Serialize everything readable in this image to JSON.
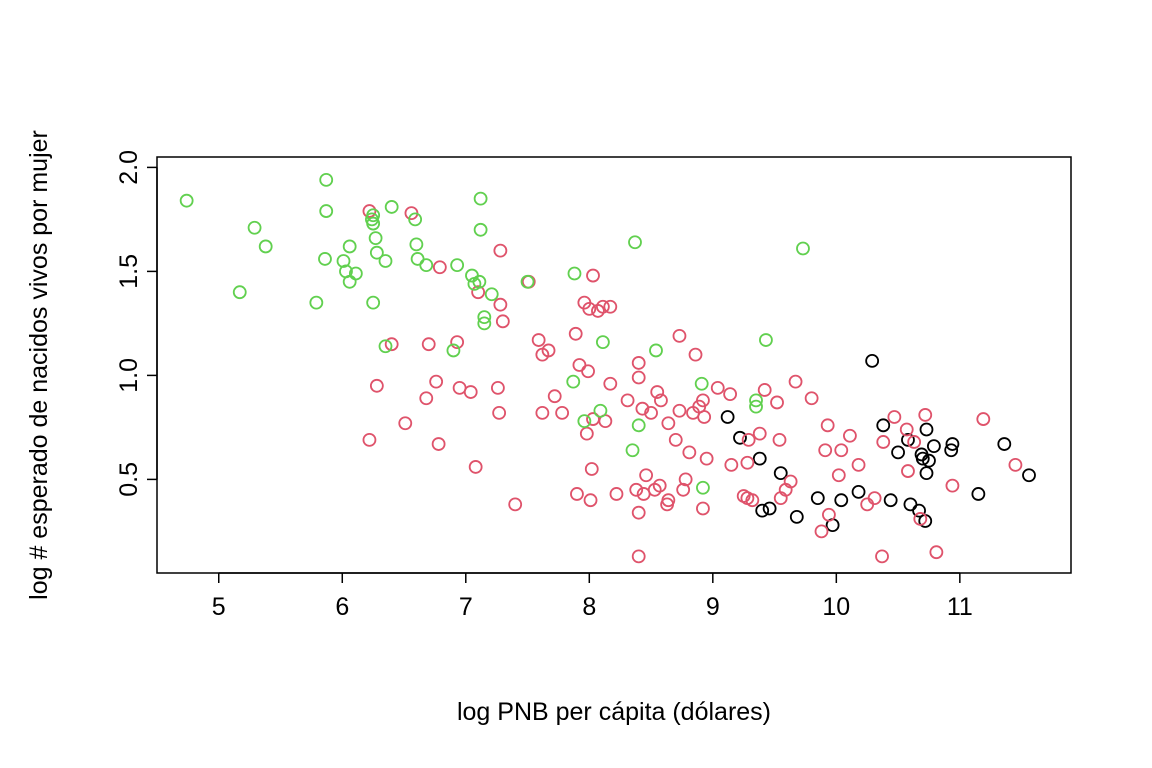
{
  "chart_data": {
    "type": "scatter",
    "title": "",
    "xlabel": "log PNB per cápita (dólares)",
    "ylabel": "log # esperado de nacidos vivos por mujer",
    "xlim": [
      4.5,
      11.9
    ],
    "ylim": [
      0.05,
      2.05
    ],
    "xticks": [
      "5",
      "6",
      "7",
      "8",
      "9",
      "10",
      "11"
    ],
    "yticks": [
      "0.5",
      "1.0",
      "1.5",
      "2.0"
    ],
    "grid": false,
    "legend": "none",
    "marker": "open circle",
    "series": [
      {
        "color": "#000000",
        "points": [
          [
            9.12,
            0.8
          ],
          [
            9.22,
            0.7
          ],
          [
            9.38,
            0.6
          ],
          [
            9.4,
            0.35
          ],
          [
            9.46,
            0.36
          ],
          [
            9.55,
            0.53
          ],
          [
            9.68,
            0.32
          ],
          [
            9.85,
            0.41
          ],
          [
            9.97,
            0.28
          ],
          [
            10.04,
            0.4
          ],
          [
            10.18,
            0.44
          ],
          [
            10.29,
            1.07
          ],
          [
            10.38,
            0.76
          ],
          [
            10.44,
            0.4
          ],
          [
            10.5,
            0.63
          ],
          [
            10.58,
            0.69
          ],
          [
            10.6,
            0.38
          ],
          [
            10.67,
            0.35
          ],
          [
            10.69,
            0.62
          ],
          [
            10.7,
            0.6
          ],
          [
            10.72,
            0.3
          ],
          [
            10.73,
            0.74
          ],
          [
            10.73,
            0.53
          ],
          [
            10.75,
            0.59
          ],
          [
            10.79,
            0.66
          ],
          [
            10.93,
            0.64
          ],
          [
            10.94,
            0.67
          ],
          [
            11.15,
            0.43
          ],
          [
            11.36,
            0.67
          ],
          [
            11.56,
            0.52
          ]
        ]
      },
      {
        "color": "#DF536B",
        "points": [
          [
            6.22,
            1.79
          ],
          [
            6.22,
            0.69
          ],
          [
            6.28,
            0.95
          ],
          [
            6.4,
            1.15
          ],
          [
            6.51,
            0.77
          ],
          [
            6.56,
            1.78
          ],
          [
            6.68,
            0.89
          ],
          [
            6.7,
            1.15
          ],
          [
            6.76,
            0.97
          ],
          [
            6.78,
            0.67
          ],
          [
            6.79,
            1.52
          ],
          [
            6.93,
            1.16
          ],
          [
            6.95,
            0.94
          ],
          [
            7.04,
            0.92
          ],
          [
            7.08,
            0.56
          ],
          [
            7.1,
            1.4
          ],
          [
            7.26,
            0.94
          ],
          [
            7.27,
            0.82
          ],
          [
            7.28,
            1.34
          ],
          [
            7.28,
            1.6
          ],
          [
            7.3,
            1.26
          ],
          [
            7.4,
            0.38
          ],
          [
            7.51,
            1.45
          ],
          [
            7.59,
            1.17
          ],
          [
            7.62,
            1.1
          ],
          [
            7.62,
            0.82
          ],
          [
            7.67,
            1.12
          ],
          [
            7.72,
            0.9
          ],
          [
            7.78,
            0.82
          ],
          [
            7.89,
            1.2
          ],
          [
            7.9,
            0.43
          ],
          [
            7.92,
            1.05
          ],
          [
            7.96,
            1.35
          ],
          [
            7.98,
            0.72
          ],
          [
            7.99,
            1.02
          ],
          [
            8.0,
            1.32
          ],
          [
            8.01,
            0.4
          ],
          [
            8.02,
            0.55
          ],
          [
            8.03,
            0.79
          ],
          [
            8.03,
            1.48
          ],
          [
            8.07,
            1.31
          ],
          [
            8.11,
            1.33
          ],
          [
            8.13,
            0.78
          ],
          [
            8.17,
            1.33
          ],
          [
            8.17,
            0.96
          ],
          [
            8.22,
            0.43
          ],
          [
            8.31,
            0.88
          ],
          [
            8.38,
            0.45
          ],
          [
            8.4,
            0.13
          ],
          [
            8.4,
            0.34
          ],
          [
            8.4,
            1.06
          ],
          [
            8.4,
            0.99
          ],
          [
            8.43,
            0.84
          ],
          [
            8.44,
            0.43
          ],
          [
            8.46,
            0.52
          ],
          [
            8.5,
            0.82
          ],
          [
            8.53,
            0.45
          ],
          [
            8.55,
            0.92
          ],
          [
            8.57,
            0.47
          ],
          [
            8.58,
            0.88
          ],
          [
            8.63,
            0.38
          ],
          [
            8.64,
            0.4
          ],
          [
            8.64,
            0.77
          ],
          [
            8.7,
            0.69
          ],
          [
            8.73,
            1.19
          ],
          [
            8.73,
            0.83
          ],
          [
            8.76,
            0.45
          ],
          [
            8.78,
            0.5
          ],
          [
            8.81,
            0.63
          ],
          [
            8.84,
            0.82
          ],
          [
            8.86,
            1.1
          ],
          [
            8.89,
            0.85
          ],
          [
            8.92,
            0.36
          ],
          [
            8.92,
            0.88
          ],
          [
            8.93,
            0.8
          ],
          [
            8.95,
            0.6
          ],
          [
            9.04,
            0.94
          ],
          [
            9.14,
            0.91
          ],
          [
            9.15,
            0.57
          ],
          [
            9.25,
            0.42
          ],
          [
            9.28,
            0.41
          ],
          [
            9.28,
            0.58
          ],
          [
            9.29,
            0.69
          ],
          [
            9.32,
            0.4
          ],
          [
            9.38,
            0.72
          ],
          [
            9.42,
            0.93
          ],
          [
            9.52,
            0.87
          ],
          [
            9.54,
            0.69
          ],
          [
            9.55,
            0.41
          ],
          [
            9.59,
            0.45
          ],
          [
            9.63,
            0.49
          ],
          [
            9.67,
            0.97
          ],
          [
            9.8,
            0.89
          ],
          [
            9.88,
            0.25
          ],
          [
            9.91,
            0.64
          ],
          [
            9.93,
            0.76
          ],
          [
            9.94,
            0.33
          ],
          [
            10.02,
            0.52
          ],
          [
            10.04,
            0.64
          ],
          [
            10.11,
            0.71
          ],
          [
            10.18,
            0.57
          ],
          [
            10.25,
            0.38
          ],
          [
            10.31,
            0.41
          ],
          [
            10.37,
            0.13
          ],
          [
            10.38,
            0.68
          ],
          [
            10.47,
            0.8
          ],
          [
            10.57,
            0.74
          ],
          [
            10.58,
            0.54
          ],
          [
            10.63,
            0.68
          ],
          [
            10.68,
            0.31
          ],
          [
            10.72,
            0.81
          ],
          [
            10.81,
            0.15
          ],
          [
            10.94,
            0.47
          ],
          [
            11.19,
            0.79
          ],
          [
            11.45,
            0.57
          ]
        ]
      },
      {
        "color": "#61D04F",
        "points": [
          [
            4.74,
            1.84
          ],
          [
            5.17,
            1.4
          ],
          [
            5.29,
            1.71
          ],
          [
            5.38,
            1.62
          ],
          [
            5.79,
            1.35
          ],
          [
            5.86,
            1.56
          ],
          [
            5.87,
            1.94
          ],
          [
            5.87,
            1.79
          ],
          [
            6.01,
            1.55
          ],
          [
            6.03,
            1.5
          ],
          [
            6.06,
            1.45
          ],
          [
            6.06,
            1.62
          ],
          [
            6.11,
            1.49
          ],
          [
            6.24,
            1.75
          ],
          [
            6.25,
            1.73
          ],
          [
            6.25,
            1.77
          ],
          [
            6.25,
            1.35
          ],
          [
            6.27,
            1.66
          ],
          [
            6.28,
            1.59
          ],
          [
            6.35,
            1.55
          ],
          [
            6.35,
            1.14
          ],
          [
            6.4,
            1.81
          ],
          [
            6.59,
            1.75
          ],
          [
            6.6,
            1.63
          ],
          [
            6.61,
            1.56
          ],
          [
            6.68,
            1.53
          ],
          [
            6.9,
            1.12
          ],
          [
            6.93,
            1.53
          ],
          [
            7.05,
            1.48
          ],
          [
            7.07,
            1.44
          ],
          [
            7.11,
            1.45
          ],
          [
            7.12,
            1.85
          ],
          [
            7.12,
            1.7
          ],
          [
            7.15,
            1.25
          ],
          [
            7.15,
            1.28
          ],
          [
            7.21,
            1.39
          ],
          [
            7.5,
            1.45
          ],
          [
            7.87,
            0.97
          ],
          [
            7.88,
            1.49
          ],
          [
            7.96,
            0.78
          ],
          [
            8.09,
            0.83
          ],
          [
            8.11,
            1.16
          ],
          [
            8.35,
            0.64
          ],
          [
            8.37,
            1.64
          ],
          [
            8.4,
            0.76
          ],
          [
            8.54,
            1.12
          ],
          [
            8.91,
            0.96
          ],
          [
            8.92,
            0.46
          ],
          [
            9.35,
            0.88
          ],
          [
            9.35,
            0.85
          ],
          [
            9.43,
            1.17
          ],
          [
            9.73,
            1.61
          ]
        ]
      }
    ]
  }
}
